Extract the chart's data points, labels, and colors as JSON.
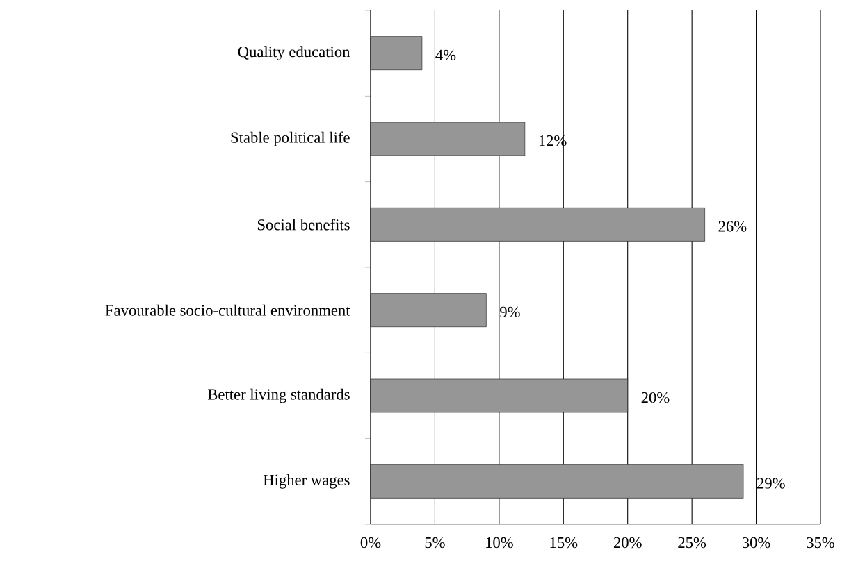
{
  "chart_data": {
    "type": "bar",
    "orientation": "horizontal",
    "categories": [
      "Quality education",
      "Stable political life",
      "Social benefits",
      "Favourable socio-cultural environment",
      "Better living standards",
      "Higher wages"
    ],
    "values": [
      4,
      12,
      26,
      9,
      20,
      29
    ],
    "value_labels": [
      "4%",
      "12%",
      "26%",
      "9%",
      "20%",
      "29%"
    ],
    "color": "#969696",
    "xlim": [
      0,
      35
    ],
    "xticks": [
      {
        "value": 0,
        "label": "0%"
      },
      {
        "value": 5,
        "label": "5%"
      },
      {
        "value": 10,
        "label": "10%"
      },
      {
        "value": 15,
        "label": "15%"
      },
      {
        "value": 20,
        "label": "20%"
      },
      {
        "value": 25,
        "label": "25%"
      },
      {
        "value": 30,
        "label": "30%"
      },
      {
        "value": 35,
        "label": "35%"
      }
    ],
    "grid": "x"
  }
}
